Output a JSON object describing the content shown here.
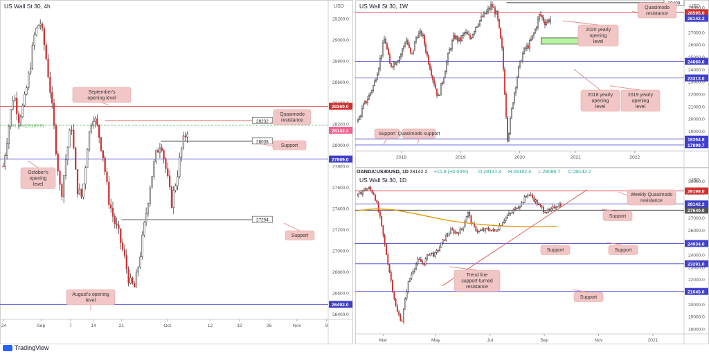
{
  "brand": "TradingView",
  "colors": {
    "up": "#ffffff",
    "down": "#d32f2f",
    "wick": "#222222",
    "red_line": "#e05a5a",
    "blue_line": "#5b5bd6",
    "green_line": "#66bb6a",
    "dark_line": "#3b3b3b",
    "orange": "#e59400",
    "zone_fill": "#b6f4a0",
    "callout_bg": "#f3c6c6",
    "callout_text": "#333333",
    "badge_red": "#d32f2f",
    "badge_blue": "#3f3fcc",
    "badge_pink": "#f06292"
  },
  "chart_data": [
    {
      "type": "candlestick",
      "title": "US Wall St 30, 4h",
      "currency": "USD",
      "ylim": [
        26350,
        29350
      ],
      "y_ticks": [
        "29200.0",
        "29000.0",
        "28800.0",
        "28600.0",
        "28400.0",
        "28200.0",
        "28000.0",
        "27800.0",
        "27600.0",
        "27400.0",
        "27200.0",
        "27000.0",
        "26800.0",
        "26600.0",
        "26400.0"
      ],
      "x_ticks": [
        "24",
        "Sep",
        "7",
        "14",
        "21",
        "Oct",
        "12",
        "19",
        "26",
        "Nov",
        "9"
      ],
      "path": [
        27800,
        28150,
        28500,
        28250,
        28400,
        28700,
        29050,
        29180,
        28900,
        28500,
        28000,
        27500,
        27900,
        28200,
        27600,
        27500,
        28000,
        28300,
        28150,
        27900,
        27500,
        27300,
        27150,
        26950,
        26700,
        26650,
        26950,
        27300,
        27650,
        27900,
        28050,
        27750,
        27450,
        27700,
        28000,
        28150
      ],
      "price_lines": [
        {
          "value": 28369.0,
          "label": "28369.0",
          "color": "red"
        },
        {
          "value": 28232,
          "label": "28232",
          "color": "red",
          "box": true
        },
        {
          "value": 28189.6,
          "label": "61.8%(28189.6)",
          "color": "green",
          "dashed": true
        },
        {
          "value": 28038,
          "label": "28038",
          "color": "dark",
          "box": true
        },
        {
          "value": 27869.0,
          "label": "27869.0",
          "color": "blue"
        },
        {
          "value": 27294,
          "label": "27294",
          "color": "dark",
          "box": true
        },
        {
          "value": 26492.0,
          "label": "26492.0",
          "color": "blue"
        }
      ],
      "last_price": "28142.2",
      "annotations": [
        "September's opening level",
        "Quasimodo resistance",
        "Support",
        "October's opening level",
        "Support",
        "August's opening level"
      ]
    },
    {
      "type": "candlestick",
      "title": "US Wall St 30, 1W",
      "currency": "USD",
      "ylim": [
        17400,
        29400
      ],
      "y_ticks": [
        "29000.0",
        "28000.0",
        "27000.0",
        "26000.0",
        "25000.0",
        "24000.0",
        "23000.0",
        "22000.0",
        "21000.0",
        "20000.0",
        "19000.0",
        "18000.0"
      ],
      "x_ticks": [
        "2018",
        "2019",
        "2020",
        "2021",
        "2022"
      ],
      "path": [
        19800,
        21000,
        21800,
        22800,
        24500,
        26600,
        24300,
        24600,
        25200,
        26500,
        25000,
        26800,
        26900,
        25000,
        23300,
        21700,
        23400,
        25400,
        26700,
        26300,
        27000,
        26500,
        27500,
        28100,
        28600,
        29200,
        28400,
        25400,
        18300,
        21500,
        24000,
        25500,
        26000,
        27000,
        28500,
        27800,
        28100
      ],
      "price_lines": [
        {
          "value": 29409,
          "label": "29409",
          "color": "dark",
          "box": true
        },
        {
          "value": 28595.0,
          "label": "28595.0",
          "color": "red"
        },
        {
          "value": 24660.0,
          "label": "24660.0",
          "color": "blue"
        },
        {
          "value": 23313.0,
          "label": "23313.0",
          "color": "blue"
        },
        {
          "value": 18364.8,
          "label": "18364.8",
          "color": "blue"
        },
        {
          "value": 17899.7,
          "label": "17899.7",
          "color": "blue"
        }
      ],
      "last_price": "28142.2",
      "zone": [
        26550,
        26050
      ],
      "annotations": [
        "Quasimodo resistance",
        "2020 yearly opening level",
        "2018 yearly opening level",
        "2019 yearly opening level",
        "Support",
        "Quasimodo support"
      ]
    },
    {
      "type": "candlestick",
      "title": "US Wall St 30, 1D",
      "header": {
        "symbol": "OANDA:US30USD, 1D",
        "last": "28142.2",
        "change": "+10.8 (+0.04%)",
        "o_label": "O:",
        "o": "28131.4",
        "h_label": "H:",
        "h": "28162.4",
        "l_label": "L:",
        "l": "28086.7",
        "c_label": "C:",
        "c": "28142.2"
      },
      "currency": "USD",
      "ylim": [
        17600,
        30300
      ],
      "y_ticks": [
        "30000.0",
        "29000.0",
        "28000.0",
        "27000.0",
        "26000.0",
        "25000.0",
        "24000.0",
        "23000.0",
        "22000.0",
        "21000.0",
        "20000.0",
        "19000.0",
        "18000.0"
      ],
      "x_ticks": [
        "Mar",
        "May",
        "Jul",
        "Sep",
        "Nov",
        "2021"
      ],
      "path": [
        28800,
        29300,
        29400,
        28900,
        27000,
        24500,
        22000,
        19500,
        18600,
        21500,
        22800,
        23600,
        23300,
        24200,
        24000,
        24700,
        25500,
        26000,
        25800,
        26100,
        27500,
        26300,
        25900,
        26000,
        26100,
        25900,
        26500,
        27100,
        27400,
        27900,
        28300,
        29000,
        28600,
        28000,
        27600,
        27500,
        28000,
        28150
      ],
      "ma_path": [
        27600,
        27750,
        27680,
        27400,
        27100,
        26800,
        26600,
        26450,
        26350,
        26300,
        26280,
        26330
      ],
      "trendline": {
        "from": [
          21500,
          0.265
        ],
        "to": [
          29300,
          0.705
        ]
      },
      "price_lines": [
        {
          "value": 29199.0,
          "label": "29199.0",
          "color": "red"
        },
        {
          "value": 28142.2,
          "label": "28142.2",
          "color": "blue"
        },
        {
          "value": 27640.0,
          "label": "27640.0",
          "color": "dark"
        },
        {
          "value": 24934.0,
          "label": "24934.0",
          "color": "blue"
        },
        {
          "value": 23291.0,
          "label": "23291.0",
          "color": "blue"
        },
        {
          "value": 21045.0,
          "label": "21045.0",
          "color": "blue"
        }
      ],
      "last_price": "28142.2",
      "annotations": [
        "Weekly Quasimodo resistance",
        "Support",
        "Support",
        "Support",
        "Trend line support-turned resistance",
        "Support"
      ]
    }
  ]
}
